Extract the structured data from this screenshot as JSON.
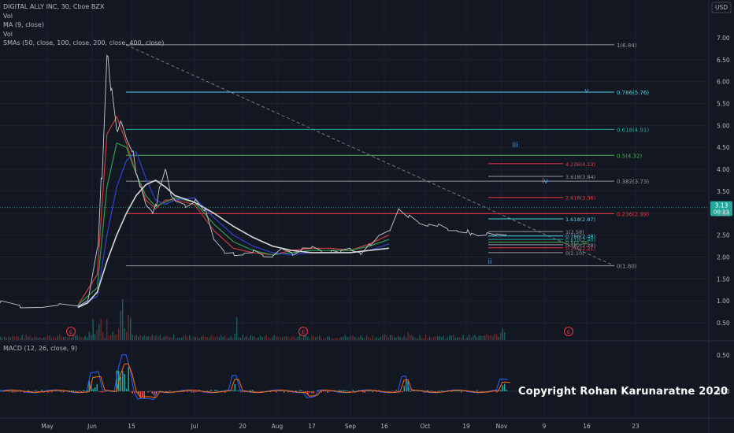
{
  "header": {
    "symbol": "DIGITAL ALLY INC, 30, Cboe BZX",
    "vol": "Vol",
    "ma": "MA (9, close)",
    "vol2": "Vol",
    "smas": "SMAs (50, close, 100, close, 200, close, 400, close)"
  },
  "currency": "USD",
  "macd_label": "MACD (12, 26, close, 9)",
  "copyright": "Copyright Rohan Karunaratne 2020",
  "price_badge": {
    "price": "3.13",
    "countdown": "00:23"
  },
  "colors": {
    "background": "#131722",
    "grid": "#1e222d",
    "price_line": "#c8cbd1",
    "sma_red": "#d13a3a",
    "sma_green": "#2a9d4e",
    "sma_blue": "#3142d4",
    "sma_white": "#d9d9d9",
    "fib_teal": "#26a69a",
    "fib_red": "#f23645",
    "fib_gray": "#787b86",
    "fib_cyan": "#4dd0e1",
    "fib_green": "#4caf50",
    "wave_label": "#42a5f5"
  },
  "chart_data": {
    "type": "line",
    "title": "DIGITAL ALLY INC, 30, Cboe BZX",
    "ylim": [
      0.25,
      7.2
    ],
    "y_ticks": [
      "0.50",
      "1.00",
      "1.50",
      "2.00",
      "2.50",
      "3.00",
      "3.50",
      "4.00",
      "4.50",
      "5.00",
      "5.50",
      "6.00",
      "6.50",
      "7.00"
    ],
    "x_ticks": [
      "May",
      "Jun",
      "15",
      "Jul",
      "20",
      "Aug",
      "17",
      "Sep",
      "16",
      "Oct",
      "19",
      "Nov",
      "9",
      "16",
      "23"
    ],
    "price_series": {
      "x_index": [
        0,
        10,
        20,
        30,
        40,
        45,
        50,
        52,
        55,
        57,
        60,
        62,
        65,
        68,
        70,
        72,
        75,
        78,
        80,
        82,
        85,
        88,
        90,
        95,
        100,
        105,
        110,
        115,
        120,
        125,
        130,
        135,
        140,
        145,
        150,
        155,
        160,
        165,
        170,
        175,
        180,
        185,
        190,
        195,
        200,
        205,
        210,
        215,
        220,
        225,
        230,
        235,
        240,
        242,
        245,
        250,
        255,
        260
      ],
      "values": [
        0.95,
        0.9,
        0.85,
        0.9,
        0.88,
        1.0,
        2.2,
        3.8,
        6.6,
        5.8,
        4.9,
        5.1,
        4.7,
        4.4,
        3.9,
        3.6,
        3.2,
        3.05,
        3.2,
        3.6,
        4.0,
        3.4,
        3.3,
        3.2,
        3.25,
        3.05,
        2.4,
        2.15,
        2.1,
        2.05,
        2.1,
        2.05,
        2.0,
        2.2,
        2.1,
        2.15,
        2.2,
        2.15,
        2.1,
        2.1,
        2.2,
        2.1,
        2.3,
        2.5,
        2.6,
        3.1,
        2.9,
        2.8,
        2.7,
        2.7,
        2.65,
        2.6,
        2.55,
        2.5,
        2.5,
        2.5,
        2.5,
        2.5
      ]
    },
    "sma_series": [
      {
        "name": "SMA 50",
        "x_index": [
          40,
          50,
          55,
          60,
          65,
          70,
          75,
          80,
          85,
          90,
          100,
          110,
          120,
          130,
          140,
          150,
          160,
          170,
          180,
          190,
          200
        ],
        "values": [
          0.9,
          1.6,
          4.8,
          5.2,
          4.6,
          3.9,
          3.3,
          3.1,
          3.3,
          3.3,
          3.2,
          2.6,
          2.2,
          2.1,
          2.05,
          2.15,
          2.2,
          2.2,
          2.15,
          2.3,
          2.5
        ]
      },
      {
        "name": "SMA 100",
        "x_index": [
          40,
          50,
          55,
          60,
          65,
          70,
          75,
          80,
          85,
          90,
          100,
          110,
          120,
          130,
          140,
          150,
          160,
          170,
          180,
          190,
          200
        ],
        "values": [
          0.9,
          1.3,
          3.6,
          4.6,
          4.5,
          3.9,
          3.4,
          3.15,
          3.25,
          3.35,
          3.25,
          2.75,
          2.35,
          2.15,
          2.05,
          2.1,
          2.15,
          2.15,
          2.15,
          2.25,
          2.4
        ]
      },
      {
        "name": "SMA 200",
        "x_index": [
          40,
          50,
          55,
          60,
          65,
          70,
          75,
          80,
          85,
          90,
          100,
          110,
          120,
          130,
          140,
          150,
          160,
          170,
          180,
          190,
          200
        ],
        "values": [
          0.88,
          1.1,
          2.5,
          3.6,
          4.2,
          4.4,
          3.8,
          3.3,
          3.2,
          3.3,
          3.35,
          2.9,
          2.5,
          2.25,
          2.1,
          2.05,
          2.1,
          2.1,
          2.1,
          2.15,
          2.3
        ]
      },
      {
        "name": "SMA 400",
        "x_index": [
          40,
          45,
          50,
          55,
          60,
          65,
          70,
          75,
          80,
          85,
          90,
          100,
          110,
          120,
          130,
          140,
          150,
          160,
          170,
          180,
          190,
          200
        ],
        "values": [
          0.85,
          0.95,
          1.2,
          1.9,
          2.5,
          3.0,
          3.4,
          3.65,
          3.75,
          3.6,
          3.4,
          3.25,
          3.0,
          2.7,
          2.45,
          2.25,
          2.15,
          2.1,
          2.1,
          2.1,
          2.15,
          2.2
        ]
      }
    ],
    "trend_line": {
      "from": 6.84,
      "to": 1.8
    },
    "fib_levels": [
      {
        "label": "1(6.84)",
        "value": 6.84,
        "color": "gray"
      },
      {
        "label": "0.786(5.76)",
        "value": 5.76,
        "color": "cyan"
      },
      {
        "label": "0.618(4.91)",
        "value": 4.91,
        "color": "teal"
      },
      {
        "label": "0.5(4.32)",
        "value": 4.32,
        "color": "green"
      },
      {
        "label": "0.382(3.73)",
        "value": 3.73,
        "color": "gray"
      },
      {
        "label": "0.236(2.99)",
        "value": 2.99,
        "color": "red"
      },
      {
        "label": "0(1.80)",
        "value": 1.8,
        "color": "gray"
      }
    ],
    "fib_ext_levels": [
      {
        "label": "4.236(4.13)",
        "value": 4.13,
        "color": "red"
      },
      {
        "label": "3.618(3.84)",
        "value": 3.84,
        "color": "gray"
      },
      {
        "label": "2.618(3.36)",
        "value": 3.36,
        "color": "red"
      },
      {
        "label": "1.618(2.87)",
        "value": 2.87,
        "color": "cyan"
      },
      {
        "label": "1(2.58)",
        "value": 2.58,
        "color": "gray"
      },
      {
        "label": "0.786(2.48)",
        "value": 2.48,
        "color": "cyan"
      },
      {
        "label": "0.618(2.40)",
        "value": 2.4,
        "color": "teal"
      },
      {
        "label": "0.5(2.34)",
        "value": 2.34,
        "color": "green"
      },
      {
        "label": "0.382(2.28)",
        "value": 2.28,
        "color": "gray"
      },
      {
        "label": "0.236(2.21)",
        "value": 2.21,
        "color": "red"
      },
      {
        "label": "0(2.10)",
        "value": 2.1,
        "color": "gray"
      }
    ],
    "wave_labels": [
      {
        "label": "iii",
        "value": 4.5
      },
      {
        "label": "iv",
        "value": 3.68
      },
      {
        "label": "v",
        "value": 5.74
      },
      {
        "label": "ii",
        "value": 1.85
      }
    ],
    "earnings_marker": "E",
    "macd": {
      "ylim": [
        -0.3,
        0.7
      ],
      "y_ticks": [
        "0.50",
        "0.00"
      ]
    }
  }
}
